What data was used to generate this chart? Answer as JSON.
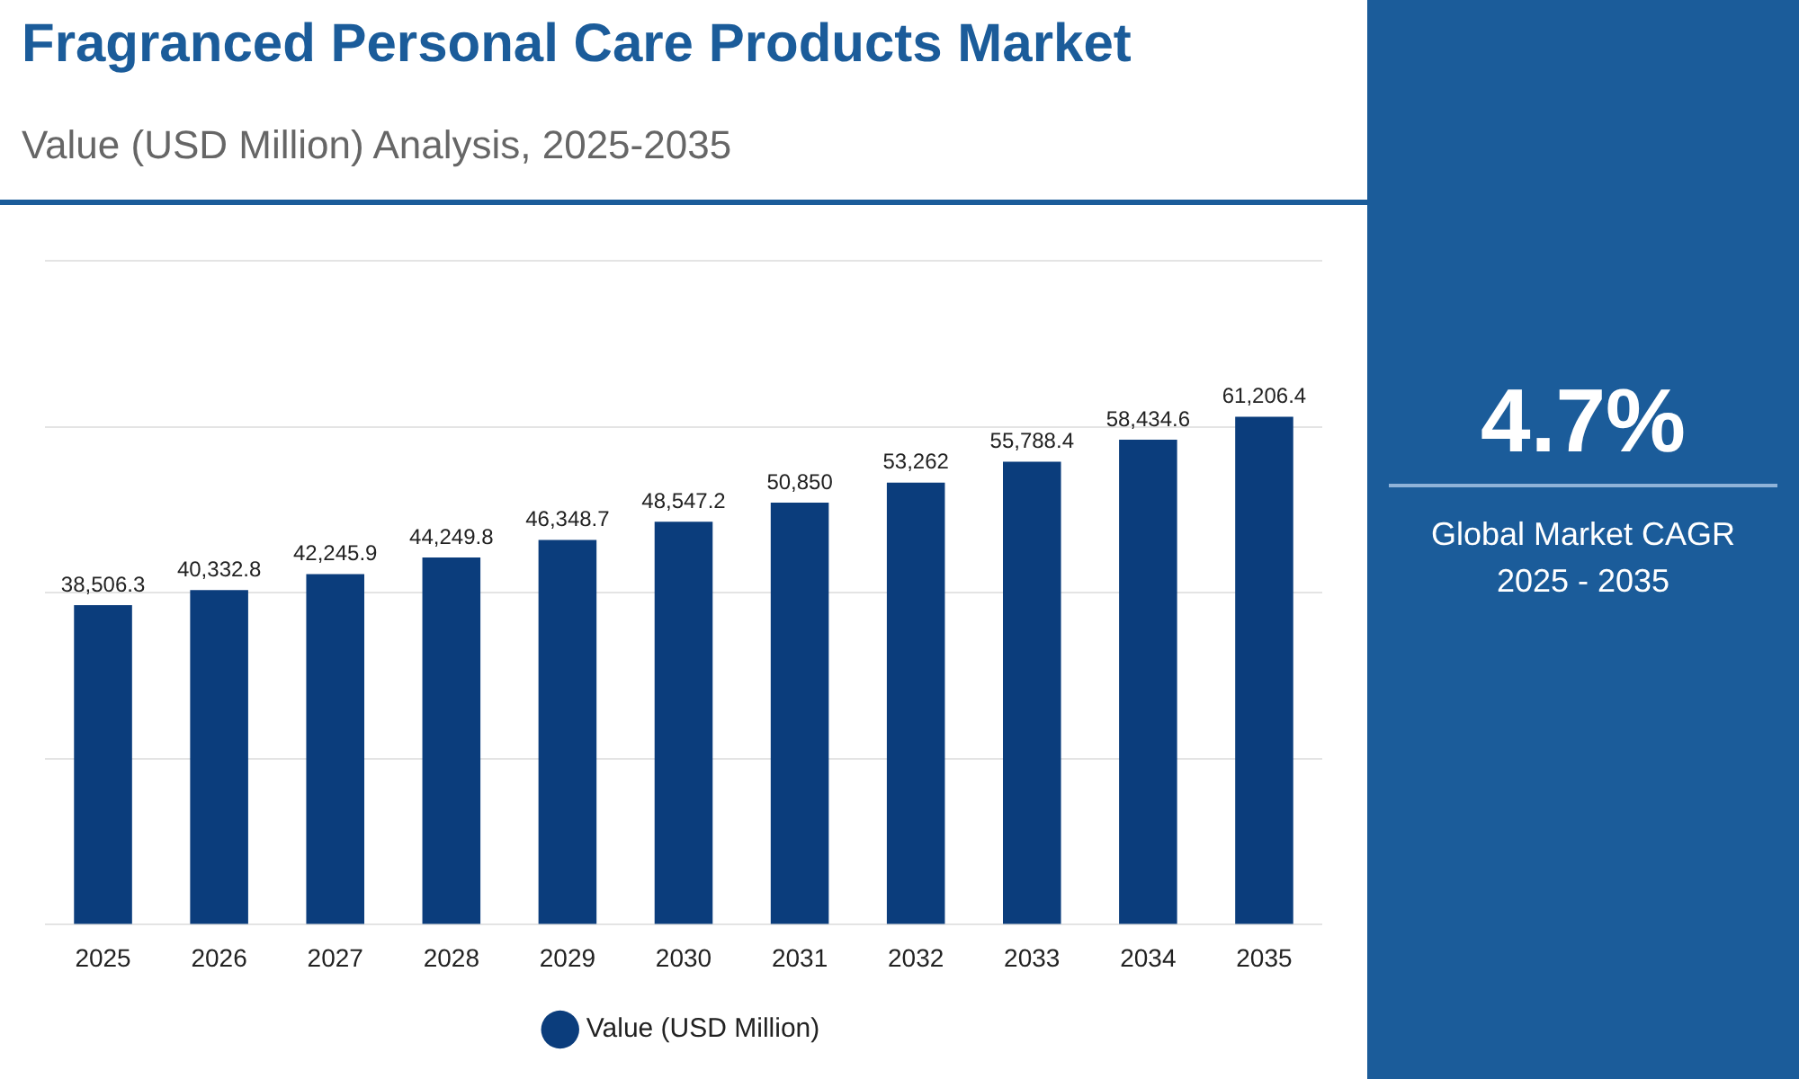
{
  "chart_data": {
    "type": "bar",
    "title": "Fragranced Personal Care Products Market",
    "subtitle": "Value (USD Million) Analysis, 2025-2035",
    "categories": [
      "2025",
      "2026",
      "2027",
      "2028",
      "2029",
      "2030",
      "2031",
      "2032",
      "2033",
      "2034",
      "2035"
    ],
    "series": [
      {
        "name": "Value (USD Million)",
        "color": "#0b3d7c",
        "values": [
          38506.3,
          40332.8,
          42245.9,
          44249.8,
          46348.7,
          48547.2,
          50850,
          53262,
          55788.4,
          58434.6,
          61206.4
        ],
        "value_labels": [
          "38,506.3",
          "40,332.8",
          "42,245.9",
          "44,249.8",
          "46,348.7",
          "48,547.2",
          "50,850",
          "53,262",
          "55,788.4",
          "58,434.6",
          "61,206.4"
        ]
      }
    ],
    "grid": "y",
    "tick_labels": "x",
    "legend": "bottom",
    "annotations": [
      "4.7%",
      "Global Market CAGR 2025 - 2035"
    ]
  }
}
